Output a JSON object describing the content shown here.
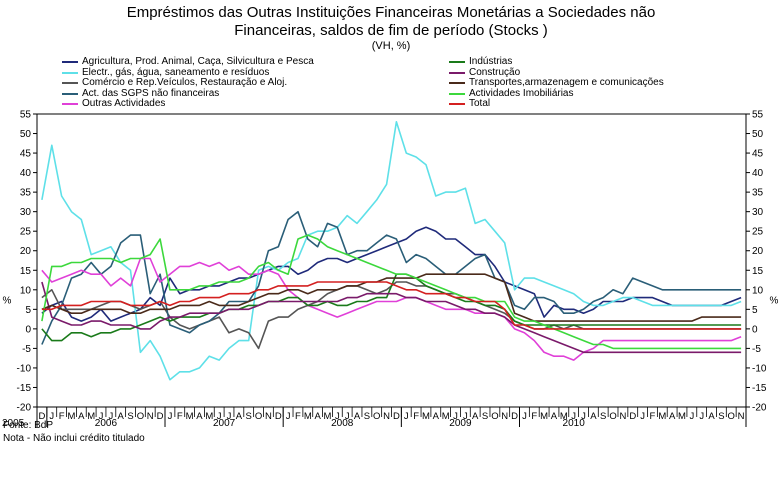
{
  "chart_data": {
    "type": "line",
    "title": "Empréstimos das Outras Instituições Financeiras Monetárias a Sociedades não Financeiras, saldos de fim de período (Stocks )",
    "title_lines": [
      "Empréstimos das Outras Instituições Financeiras Monetárias a Sociedades não",
      "Financeiras, saldos de fim de período (Stocks )"
    ],
    "subtitle": "(VH, %)",
    "ylabel_left": "%",
    "ylabel_right": "%",
    "ylim": [
      -20,
      55
    ],
    "yticks": [
      -20,
      -15,
      -10,
      -5,
      0,
      5,
      10,
      15,
      20,
      25,
      30,
      35,
      40,
      45,
      50,
      55
    ],
    "month_labels": [
      "D",
      "J",
      "F",
      "M",
      "A",
      "M",
      "J",
      "J",
      "A",
      "S",
      "O",
      "N",
      "D",
      "J",
      "F",
      "M",
      "A",
      "M",
      "J",
      "J",
      "A",
      "S",
      "O",
      "N",
      "D",
      "J",
      "F",
      "M",
      "A",
      "M",
      "J",
      "J",
      "A",
      "S",
      "O",
      "N",
      "D",
      "J",
      "F",
      "M",
      "A",
      "M",
      "J",
      "J",
      "A",
      "S",
      "O",
      "N",
      "D",
      "J",
      "F",
      "M",
      "A",
      "M",
      "J",
      "J",
      "A",
      "S",
      "O",
      "N",
      "D",
      "J",
      "F",
      "M",
      "A",
      "M",
      "J",
      "J",
      "A",
      "S",
      "O",
      "N"
    ],
    "years": [
      {
        "label": "2005",
        "start": 0,
        "end": 0
      },
      {
        "label": "2006",
        "start": 1,
        "end": 12
      },
      {
        "label": "2007",
        "start": 13,
        "end": 24
      },
      {
        "label": "2008",
        "start": 25,
        "end": 36
      },
      {
        "label": "2009",
        "start": 37,
        "end": 48
      },
      {
        "label": "2010",
        "start": 49,
        "end": 59
      }
    ],
    "series": [
      {
        "name": "Agricultura, Prod. Animal, Caça, Silvicultura e Pesca",
        "color": "#1f2a7a",
        "values": [
          4,
          6,
          7,
          3,
          2,
          3,
          5,
          2,
          3,
          4,
          5,
          8,
          6,
          13,
          9,
          10,
          10,
          11,
          11,
          12,
          13,
          13,
          14,
          15,
          16,
          16,
          14,
          15,
          17,
          18,
          18,
          17,
          18,
          19,
          20,
          21,
          22,
          23,
          25,
          26,
          25,
          23,
          23,
          21,
          19,
          19,
          16,
          12,
          11,
          10,
          9,
          3,
          6,
          5,
          5,
          4,
          5,
          7,
          7,
          7,
          8,
          8,
          8,
          7,
          6,
          6,
          6,
          6,
          6,
          6,
          7,
          8
        ]
      },
      {
        "name": "Electr., gás, água, saneamento e resíduos",
        "color": "#5ee0e8",
        "values": [
          33,
          47,
          34,
          30,
          28,
          19,
          20,
          21,
          17,
          15,
          -6,
          -3,
          -7,
          -13,
          -11,
          -11,
          -10,
          -7,
          -8,
          -5,
          -3,
          -3,
          15,
          16,
          15,
          17,
          18,
          24,
          25,
          25,
          26,
          29,
          27,
          30,
          33,
          37,
          53,
          45,
          44,
          42,
          34,
          35,
          35,
          36,
          27,
          28,
          25,
          22,
          10,
          13,
          13,
          12,
          11,
          10,
          9,
          7,
          6,
          6,
          7,
          8,
          8,
          7,
          6,
          6,
          6,
          6,
          6,
          6,
          6,
          6,
          6,
          7
        ]
      },
      {
        "name": "Comércio e Rep.Veículos, Restauração e Aloj.",
        "color": "#555555",
        "values": [
          8,
          10,
          5,
          5,
          5,
          5,
          6,
          7,
          7,
          6,
          5,
          6,
          7,
          3,
          1,
          0,
          1,
          2,
          3,
          -1,
          0,
          -1,
          -5,
          2,
          3,
          3,
          5,
          6,
          7,
          9,
          10,
          11,
          11,
          10,
          9,
          10,
          12,
          12,
          11,
          11,
          10,
          9,
          9,
          8,
          7,
          6,
          5,
          4,
          2,
          1,
          0,
          0,
          1,
          0,
          1,
          0,
          0,
          0,
          0,
          0,
          0,
          0,
          0,
          0,
          0,
          0,
          0,
          0,
          0,
          0,
          0,
          0
        ]
      },
      {
        "name": "Act. das SGPS não financeiras",
        "color": "#2a5e78",
        "values": [
          -4,
          2,
          6,
          13,
          14,
          17,
          14,
          16,
          22,
          24,
          24,
          9,
          14,
          1,
          0,
          -1,
          1,
          2,
          4,
          7,
          7,
          7,
          11,
          20,
          21,
          28,
          30,
          23,
          21,
          27,
          26,
          19,
          20,
          20,
          22,
          24,
          23,
          17,
          19,
          18,
          16,
          14,
          14,
          16,
          18,
          19,
          13,
          12,
          6,
          5,
          8,
          8,
          7,
          4,
          4,
          5,
          7,
          8,
          10,
          9,
          13,
          12,
          11,
          10,
          10,
          10,
          10,
          10,
          10,
          10,
          10,
          10
        ]
      },
      {
        "name": "Outras Actividades",
        "color": "#e040d8",
        "values": [
          15,
          12,
          13,
          14,
          15,
          14,
          14,
          11,
          13,
          11,
          18,
          18,
          12,
          14,
          16,
          16,
          17,
          16,
          17,
          15,
          16,
          14,
          14,
          15,
          14,
          10,
          8,
          6,
          5,
          4,
          3,
          4,
          5,
          6,
          7,
          7,
          7,
          8,
          8,
          7,
          6,
          5,
          5,
          5,
          4,
          4,
          4,
          3,
          0,
          -1,
          -3,
          -6,
          -7,
          -7,
          -8,
          -6,
          -5,
          -3,
          -3,
          -3,
          -3,
          -3,
          -3,
          -3,
          -3,
          -3,
          -3,
          -3,
          -3,
          -3,
          -3,
          -2
        ]
      },
      {
        "name": "Indústrias",
        "color": "#1a7a1a",
        "values": [
          0,
          -3,
          -3,
          -1,
          -1,
          -2,
          -1,
          -1,
          0,
          0,
          1,
          2,
          3,
          2,
          3,
          3,
          3,
          4,
          4,
          5,
          5,
          6,
          6,
          7,
          7,
          8,
          8,
          6,
          6,
          7,
          6,
          6,
          7,
          7,
          8,
          8,
          14,
          14,
          13,
          11,
          10,
          9,
          8,
          7,
          7,
          6,
          6,
          5,
          2,
          1,
          1,
          1,
          1,
          1,
          1,
          1,
          1,
          1,
          1,
          1,
          1,
          1,
          1,
          1,
          1,
          1,
          1,
          1,
          1,
          1,
          1,
          1
        ]
      },
      {
        "name": "Construção",
        "color": "#7a1a6a",
        "values": [
          12,
          3,
          2,
          1,
          1,
          2,
          2,
          1,
          1,
          1,
          0,
          0,
          2,
          3,
          3,
          4,
          4,
          4,
          4,
          5,
          5,
          5,
          6,
          7,
          7,
          7,
          7,
          7,
          7,
          7,
          7,
          8,
          8,
          9,
          9,
          9,
          9,
          8,
          8,
          7,
          7,
          7,
          6,
          5,
          5,
          4,
          4,
          3,
          1,
          0,
          -1,
          -2,
          -3,
          -4,
          -5,
          -6,
          -6,
          -6,
          -6,
          -6,
          -6,
          -6,
          -6,
          -6,
          -6,
          -6,
          -6,
          -6,
          -6,
          -6,
          -6,
          -6
        ]
      },
      {
        "name": "Transportes,armazenagem e comunicações",
        "color": "#4a2a1a",
        "values": [
          5,
          6,
          5,
          4,
          4,
          5,
          5,
          5,
          5,
          4,
          4,
          5,
          5,
          5,
          6,
          6,
          6,
          7,
          6,
          6,
          6,
          7,
          8,
          9,
          9,
          10,
          10,
          9,
          10,
          10,
          10,
          11,
          11,
          12,
          12,
          13,
          13,
          13,
          13,
          14,
          14,
          14,
          14,
          14,
          14,
          14,
          13,
          12,
          4,
          3,
          2,
          2,
          2,
          2,
          2,
          2,
          2,
          2,
          2,
          2,
          2,
          2,
          2,
          2,
          2,
          2,
          2,
          3,
          3,
          3,
          3,
          3
        ]
      },
      {
        "name": "Actividades Imobiliárias",
        "color": "#3cd83c",
        "values": [
          2,
          16,
          16,
          17,
          17,
          18,
          18,
          18,
          17,
          18,
          18,
          19,
          23,
          10,
          10,
          10,
          11,
          11,
          12,
          12,
          12,
          13,
          16,
          17,
          15,
          14,
          23,
          24,
          23,
          21,
          20,
          19,
          18,
          17,
          16,
          15,
          14,
          14,
          13,
          12,
          11,
          10,
          9,
          8,
          8,
          7,
          7,
          7,
          3,
          2,
          2,
          1,
          0,
          -1,
          -2,
          -3,
          -4,
          -4,
          -5,
          -5,
          -5,
          -5,
          -5,
          -5,
          -5,
          -5,
          -5,
          -5,
          -5,
          -5,
          -5,
          -5
        ]
      },
      {
        "name": "Total",
        "color": "#d42020",
        "values": [
          5,
          5,
          6,
          6,
          6,
          7,
          7,
          7,
          7,
          6,
          6,
          6,
          7,
          6,
          7,
          7,
          8,
          8,
          8,
          9,
          9,
          9,
          10,
          10,
          11,
          11,
          11,
          11,
          12,
          12,
          12,
          12,
          12,
          12,
          12,
          12,
          11,
          10,
          10,
          9,
          9,
          9,
          8,
          8,
          7,
          7,
          7,
          5,
          1,
          1,
          0,
          0,
          0,
          0,
          0,
          0,
          0,
          0,
          0,
          0,
          0,
          0,
          0,
          0,
          0,
          0,
          0,
          0,
          0,
          0,
          0,
          0
        ]
      }
    ]
  },
  "legend_order": [
    {
      "series": 0,
      "col": 0,
      "row": 0
    },
    {
      "series": 5,
      "col": 1,
      "row": 0
    },
    {
      "series": 1,
      "col": 0,
      "row": 1
    },
    {
      "series": 6,
      "col": 1,
      "row": 1
    },
    {
      "series": 2,
      "col": 0,
      "row": 2
    },
    {
      "series": 7,
      "col": 1,
      "row": 2
    },
    {
      "series": 3,
      "col": 0,
      "row": 3
    },
    {
      "series": 8,
      "col": 1,
      "row": 3
    },
    {
      "series": 4,
      "col": 0,
      "row": 4
    },
    {
      "series": 9,
      "col": 1,
      "row": 4
    }
  ],
  "notes": {
    "fonte": "Fonte: BdP",
    "nota": "Nota - Não inclui crédito titulado"
  }
}
